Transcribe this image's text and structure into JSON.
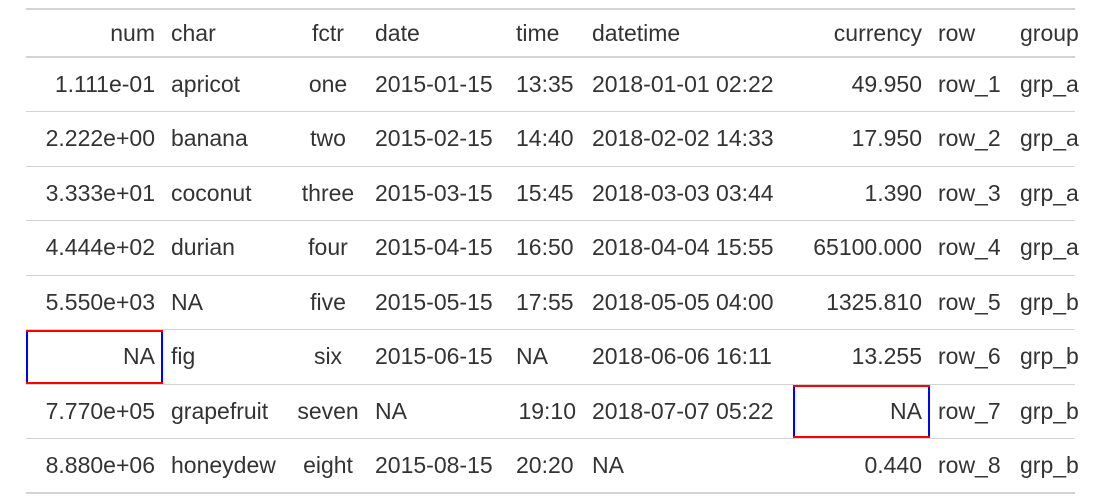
{
  "columns": [
    "num",
    "char",
    "fctr",
    "date",
    "time",
    "datetime",
    "currency",
    "row",
    "group"
  ],
  "rows": [
    [
      "1.111e-01",
      "apricot",
      "one",
      "2015-01-15",
      "13:35",
      "2018-01-01 02:22",
      "49.950",
      "row_1",
      "grp_a"
    ],
    [
      "2.222e+00",
      "banana",
      "two",
      "2015-02-15",
      "14:40",
      "2018-02-02 14:33",
      "17.950",
      "row_2",
      "grp_a"
    ],
    [
      "3.333e+01",
      "coconut",
      "three",
      "2015-03-15",
      "15:45",
      "2018-03-03 03:44",
      "1.390",
      "row_3",
      "grp_a"
    ],
    [
      "4.444e+02",
      "durian",
      "four",
      "2015-04-15",
      "16:50",
      "2018-04-04 15:55",
      "65100.000",
      "row_4",
      "grp_a"
    ],
    [
      "5.550e+03",
      "NA",
      "five",
      "2015-05-15",
      "17:55",
      "2018-05-05 04:00",
      "1325.810",
      "row_5",
      "grp_b"
    ],
    [
      "NA",
      "fig",
      "six",
      "2015-06-15",
      "NA",
      "2018-06-06 16:11",
      "13.255",
      "row_6",
      "grp_b"
    ],
    [
      "7.770e+05",
      "grapefruit",
      "seven",
      "NA",
      "19:10",
      "2018-07-07 05:22",
      "NA",
      "row_7",
      "grp_b"
    ],
    [
      "8.880e+06",
      "honeydew",
      "eight",
      "2015-08-15",
      "20:20",
      "NA",
      "0.440",
      "row_8",
      "grp_b"
    ]
  ],
  "highlights": {
    "top_border_color": "#ff0000",
    "side_border_color": "#0000ff",
    "cells": [
      {
        "row": 6,
        "column": "num"
      },
      {
        "row": 7,
        "column": "currency"
      }
    ]
  },
  "rule_color": "#d3d3d3"
}
